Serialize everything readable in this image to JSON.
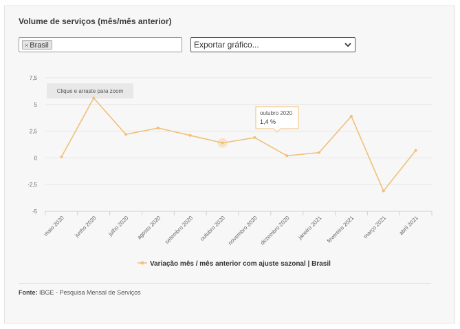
{
  "header": {
    "title": "Volume de serviços (mês/mês anterior)"
  },
  "filter": {
    "tag_remove": "×",
    "tag_label": "Brasil"
  },
  "export": {
    "placeholder": "Exportar gráfico..."
  },
  "chart_data": {
    "type": "line",
    "categories": [
      "maio 2020",
      "junho 2020",
      "julho 2020",
      "agosto 2020",
      "setembro 2020",
      "outubro 2020",
      "novembro 2020",
      "dezembro 2020",
      "janeiro 2021",
      "fevereiro 2021",
      "março 2021",
      "abril 2021"
    ],
    "series": [
      {
        "name": "Variação mês / mês anterior com ajuste sazonal | Brasil",
        "values": [
          0.1,
          5.6,
          2.2,
          2.8,
          2.1,
          1.4,
          1.9,
          0.2,
          0.5,
          3.9,
          -3.1,
          0.7
        ]
      }
    ],
    "yticks": [
      7.5,
      5,
      2.5,
      0,
      -2.5,
      -5
    ],
    "ytick_labels": [
      "7,5",
      "5",
      "2,5",
      "0",
      "-2,5",
      "-5"
    ],
    "ylim": [
      -5,
      7.5
    ],
    "color": "#f0c078",
    "grid": true,
    "legend": "bottom-center",
    "highlight_index": 5,
    "tooltip": {
      "category": "outubro 2020",
      "value": "1,4 %"
    },
    "zoom_hint": "Clique e arraste para zoom"
  },
  "source": {
    "label": "Fonte:",
    "text": "IBGE - Pesquisa Mensal de Serviços"
  }
}
